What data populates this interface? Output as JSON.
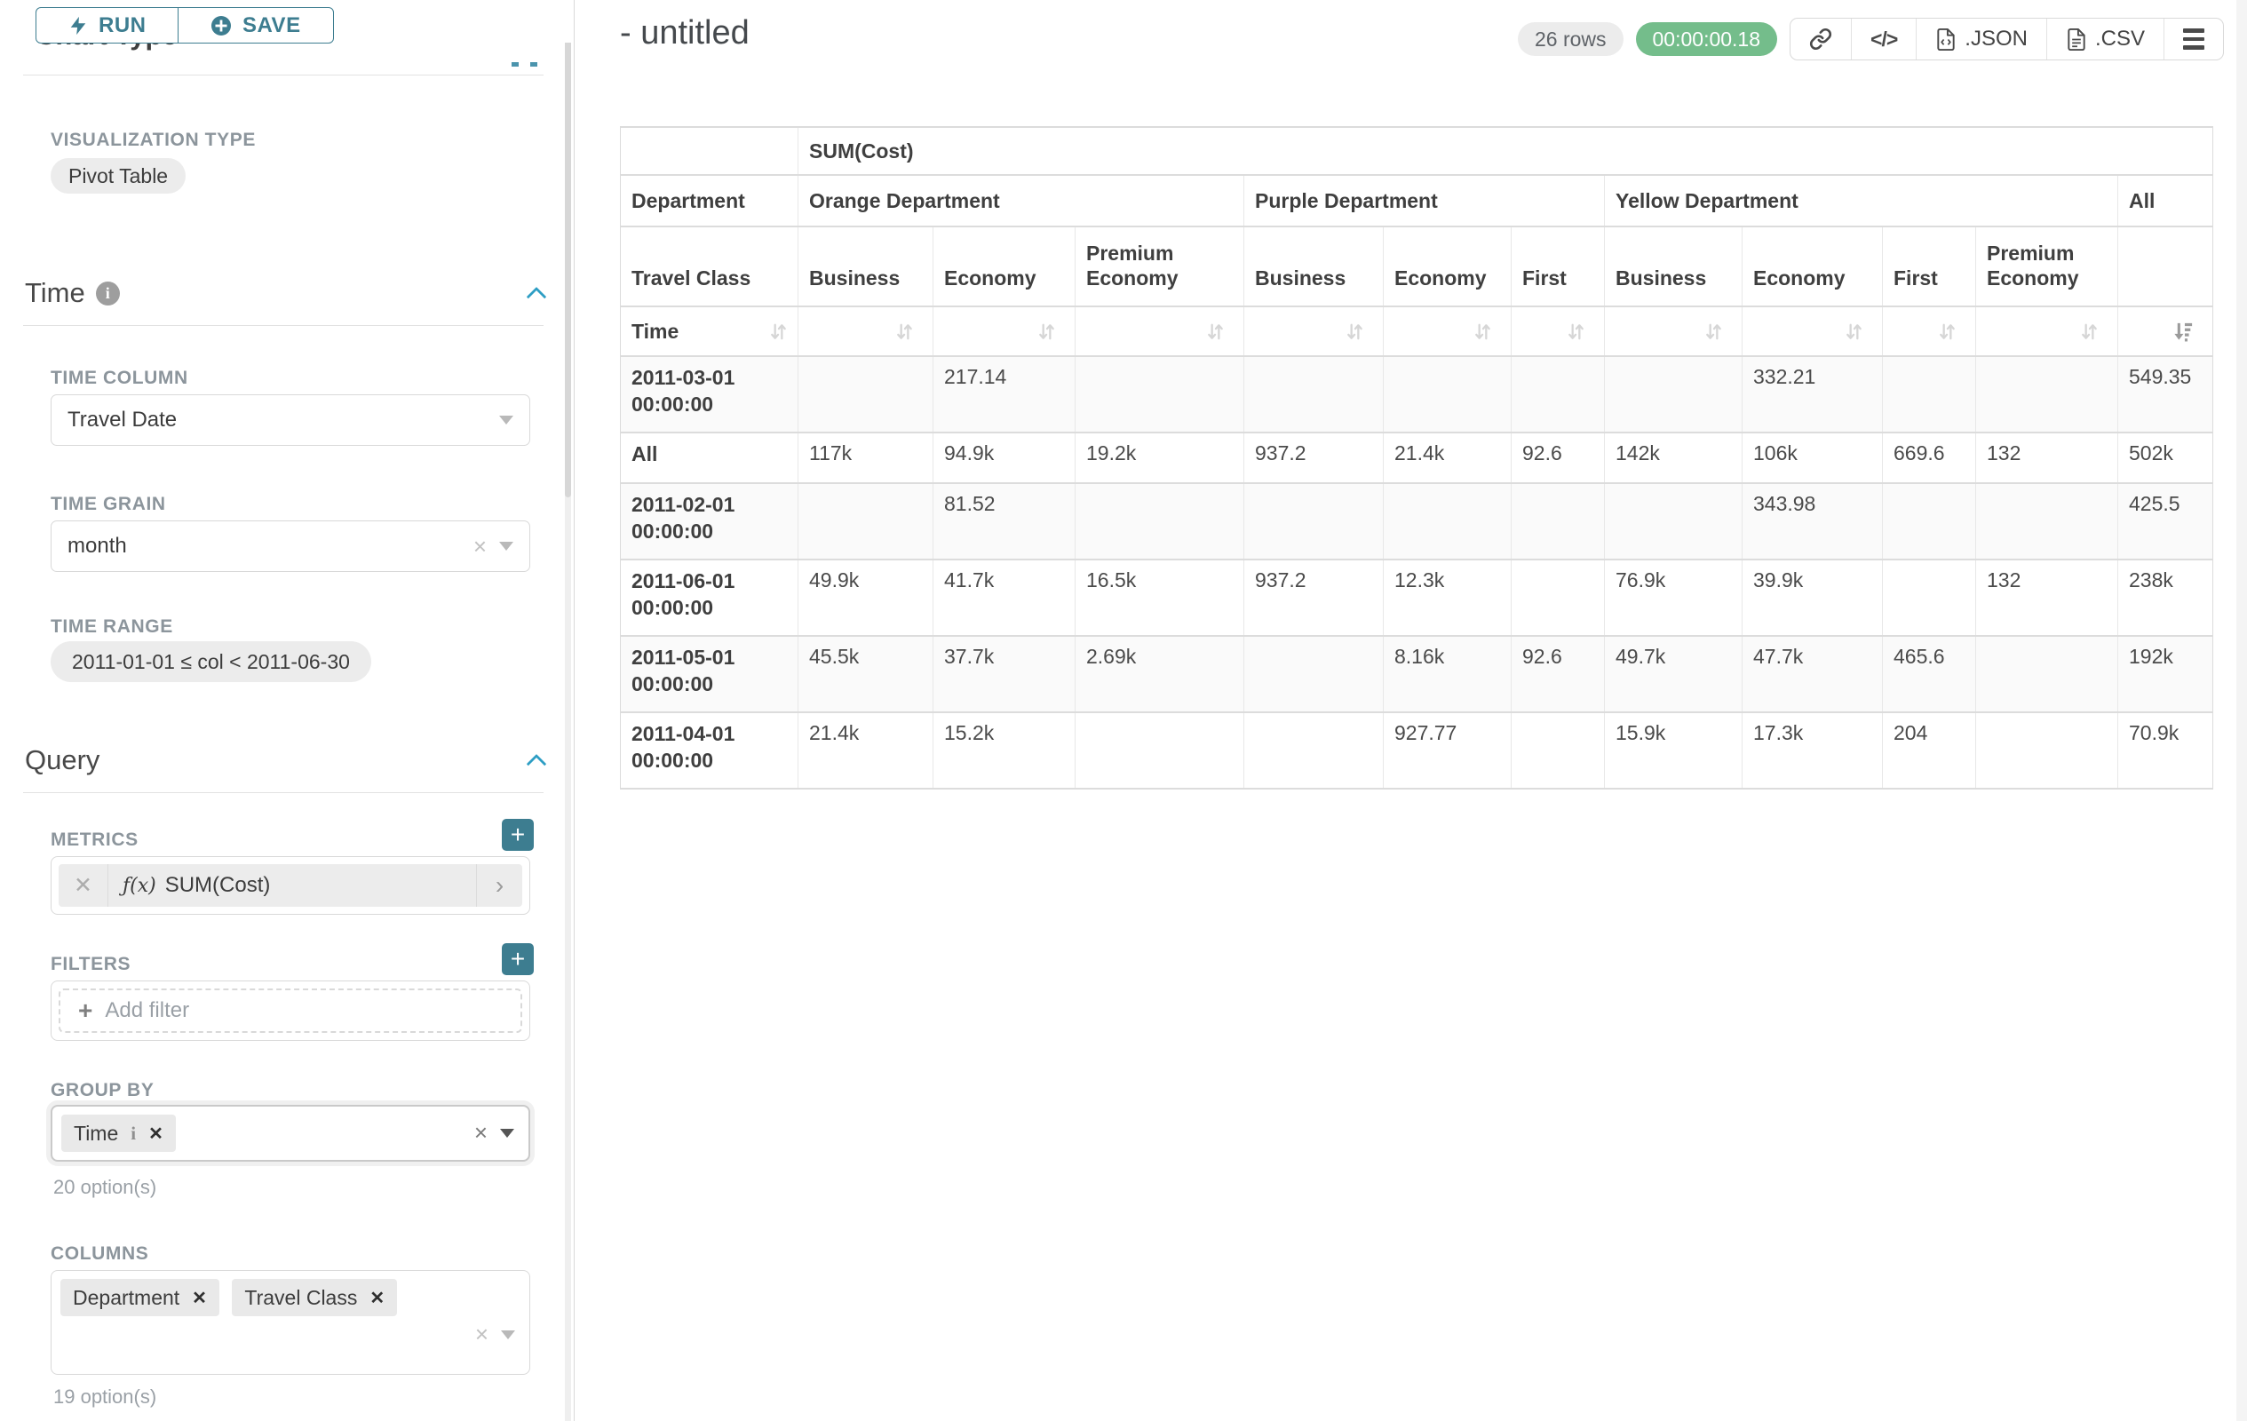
{
  "colors": {
    "accent": "#3d7d90",
    "success": "#74bd8b"
  },
  "sidebar": {
    "toolbar": {
      "run": "RUN",
      "save": "SAVE"
    },
    "chart_type_heading": "Chart Type",
    "visualization_type": {
      "label": "VISUALIZATION TYPE",
      "value": "Pivot Table"
    },
    "time": {
      "title": "Time",
      "time_column": {
        "label": "TIME COLUMN",
        "value": "Travel Date"
      },
      "time_grain": {
        "label": "TIME GRAIN",
        "value": "month"
      },
      "time_range": {
        "label": "TIME RANGE",
        "value": "2011-01-01 ≤ col < 2011-06-30"
      }
    },
    "query": {
      "title": "Query",
      "metrics": {
        "label": "METRICS",
        "items": [
          {
            "fn": "ƒ(x)",
            "name": "SUM(Cost)"
          }
        ]
      },
      "filters": {
        "label": "FILTERS",
        "placeholder": "Add filter"
      },
      "group_by": {
        "label": "GROUP BY",
        "tags": [
          "Time"
        ],
        "hint": "20 option(s)"
      },
      "columns": {
        "label": "COLUMNS",
        "tags": [
          "Department",
          "Travel Class"
        ],
        "hint": "19 option(s)"
      }
    }
  },
  "header": {
    "title": "- untitled",
    "row_count": "26 rows",
    "duration": "00:00:00.18",
    "export_json": ".JSON",
    "export_csv": ".CSV"
  },
  "table": {
    "metric": "SUM(Cost)",
    "corner_col": "Department",
    "corner_row": "Travel Class",
    "time_label": "Time",
    "groups": [
      {
        "name": "Orange Department",
        "cols": [
          "Business",
          "Economy",
          "Premium Economy"
        ]
      },
      {
        "name": "Purple Department",
        "cols": [
          "Business",
          "Economy",
          "First"
        ]
      },
      {
        "name": "Yellow Department",
        "cols": [
          "Business",
          "Economy",
          "First",
          "Premium Economy"
        ]
      },
      {
        "name": "All",
        "cols": [
          ""
        ]
      }
    ],
    "rows": [
      {
        "label": "2011-03-01 00:00:00",
        "values": [
          "",
          "217.14",
          "",
          "",
          "",
          "",
          "",
          "332.21",
          "",
          "",
          "549.35"
        ]
      },
      {
        "label": "All",
        "values": [
          "117k",
          "94.9k",
          "19.2k",
          "937.2",
          "21.4k",
          "92.6",
          "142k",
          "106k",
          "669.6",
          "132",
          "502k"
        ]
      },
      {
        "label": "2011-02-01 00:00:00",
        "values": [
          "",
          "81.52",
          "",
          "",
          "",
          "",
          "",
          "343.98",
          "",
          "",
          "425.5"
        ]
      },
      {
        "label": "2011-06-01 00:00:00",
        "values": [
          "49.9k",
          "41.7k",
          "16.5k",
          "937.2",
          "12.3k",
          "",
          "76.9k",
          "39.9k",
          "",
          "132",
          "238k"
        ]
      },
      {
        "label": "2011-05-01 00:00:00",
        "values": [
          "45.5k",
          "37.7k",
          "2.69k",
          "",
          "8.16k",
          "92.6",
          "49.7k",
          "47.7k",
          "465.6",
          "",
          "192k"
        ]
      },
      {
        "label": "2011-04-01 00:00:00",
        "values": [
          "21.4k",
          "15.2k",
          "",
          "",
          "927.77",
          "",
          "15.9k",
          "17.3k",
          "204",
          "",
          "70.9k"
        ]
      }
    ]
  }
}
